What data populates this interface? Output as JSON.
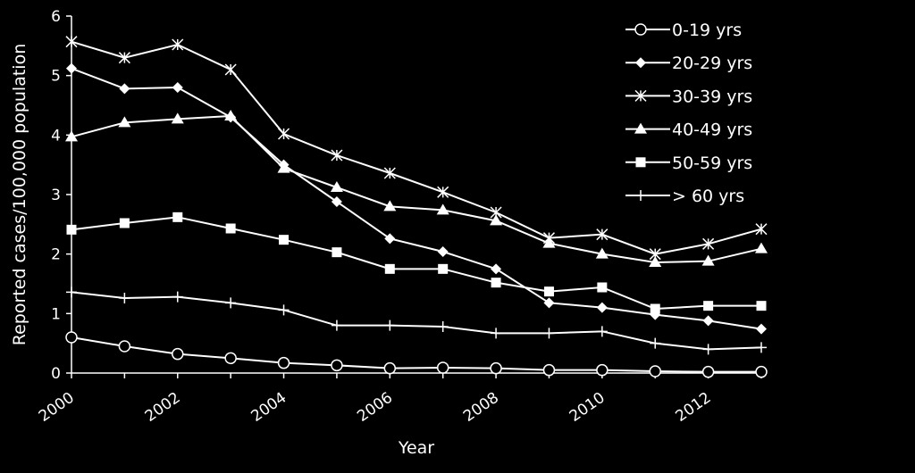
{
  "chart_data": {
    "type": "line",
    "title": "",
    "xlabel": "Year",
    "ylabel": "Reported cases/100,000 population",
    "xlim": [
      2000,
      2013
    ],
    "ylim": [
      0,
      6
    ],
    "x_ticks": [
      "2000",
      "2002",
      "2004",
      "2006",
      "2008",
      "2010",
      "2012"
    ],
    "y_ticks": [
      "0",
      "1",
      "2",
      "3",
      "4",
      "5",
      "6"
    ],
    "grid": false,
    "legend_position": "top-right",
    "background": "#000000",
    "foreground": "#ffffff",
    "x": [
      2000,
      2001,
      2002,
      2003,
      2004,
      2005,
      2006,
      2007,
      2008,
      2009,
      2010,
      2011,
      2012,
      2013
    ],
    "series": [
      {
        "name": "0-19 yrs",
        "marker": "open-circle",
        "values": [
          0.6,
          0.45,
          0.32,
          0.25,
          0.17,
          0.13,
          0.08,
          0.09,
          0.08,
          0.05,
          0.05,
          0.03,
          0.02,
          0.02
        ]
      },
      {
        "name": "20-29 yrs",
        "marker": "diamond",
        "values": [
          5.12,
          4.78,
          4.8,
          4.3,
          3.5,
          2.88,
          2.26,
          2.04,
          1.75,
          1.18,
          1.1,
          0.98,
          0.88,
          0.74
        ]
      },
      {
        "name": "30-39 yrs",
        "marker": "asterisk",
        "values": [
          5.57,
          5.3,
          5.52,
          5.1,
          4.02,
          3.66,
          3.36,
          3.04,
          2.7,
          2.27,
          2.33,
          2.0,
          2.17,
          2.42
        ]
      },
      {
        "name": "40-49 yrs",
        "marker": "triangle",
        "values": [
          3.97,
          4.21,
          4.27,
          4.32,
          3.44,
          3.12,
          2.8,
          2.74,
          2.56,
          2.18,
          2.0,
          1.86,
          1.88,
          2.09
        ]
      },
      {
        "name": "50-59 yrs",
        "marker": "square",
        "values": [
          2.41,
          2.52,
          2.62,
          2.43,
          2.24,
          2.03,
          1.75,
          1.75,
          1.52,
          1.37,
          1.44,
          1.08,
          1.13,
          1.13
        ]
      },
      {
        "name": "> 60 yrs",
        "marker": "plus",
        "values": [
          1.36,
          1.26,
          1.28,
          1.18,
          1.06,
          0.8,
          0.8,
          0.78,
          0.67,
          0.67,
          0.7,
          0.5,
          0.4,
          0.43
        ]
      }
    ]
  }
}
